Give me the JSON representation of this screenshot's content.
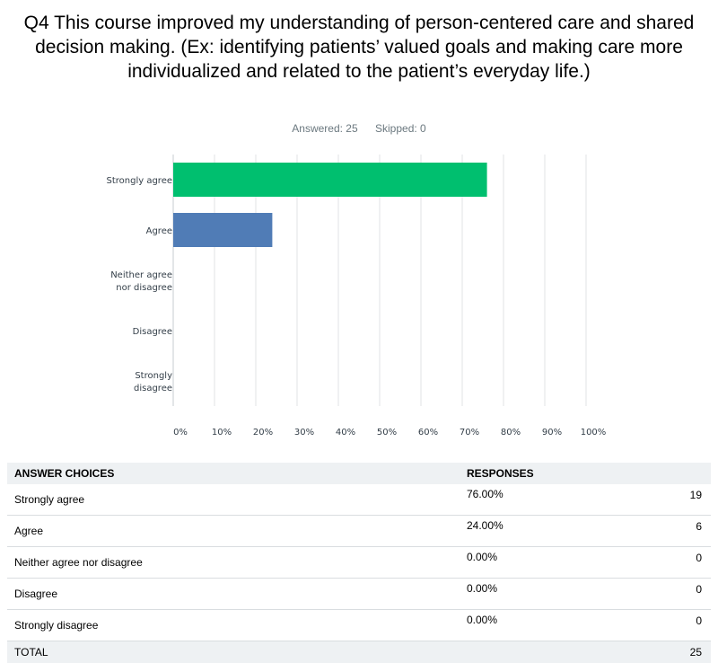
{
  "question": {
    "title": "Q4 This course improved my understanding of person-centered care and shared decision making.  (Ex: identifying patients’ valued goals and making care more individualized and related to the patient’s everyday life.)",
    "answered": "Answered: 25",
    "skipped": "Skipped: 0"
  },
  "colors": {
    "bar_primary": "#00bf6f",
    "bar_secondary": "#507cb6",
    "grid": "#e0e3e6",
    "header_bg": "#eef1f3"
  },
  "chart_data": {
    "type": "bar",
    "orientation": "horizontal",
    "categories": [
      [
        "Strongly agree"
      ],
      [
        "Agree"
      ],
      [
        "Neither agree",
        "nor disagree"
      ],
      [
        "Disagree"
      ],
      [
        "Strongly",
        "disagree"
      ]
    ],
    "values": [
      76,
      24,
      0,
      0,
      0
    ],
    "xlim": [
      0,
      100
    ],
    "xticks": [
      "0%",
      "10%",
      "20%",
      "30%",
      "40%",
      "50%",
      "60%",
      "70%",
      "80%",
      "90%",
      "100%"
    ],
    "grid": true,
    "legend": false
  },
  "table": {
    "headers": {
      "choice": "ANSWER CHOICES",
      "responses": "RESPONSES"
    },
    "rows": [
      {
        "choice": "Strongly agree",
        "percent": "76.00%",
        "count": "19"
      },
      {
        "choice": "Agree",
        "percent": "24.00%",
        "count": "6"
      },
      {
        "choice": "Neither agree nor disagree",
        "percent": "0.00%",
        "count": "0"
      },
      {
        "choice": "Disagree",
        "percent": "0.00%",
        "count": "0"
      },
      {
        "choice": "Strongly disagree",
        "percent": "0.00%",
        "count": "0"
      }
    ],
    "total": {
      "label": "TOTAL",
      "count": "25"
    }
  }
}
